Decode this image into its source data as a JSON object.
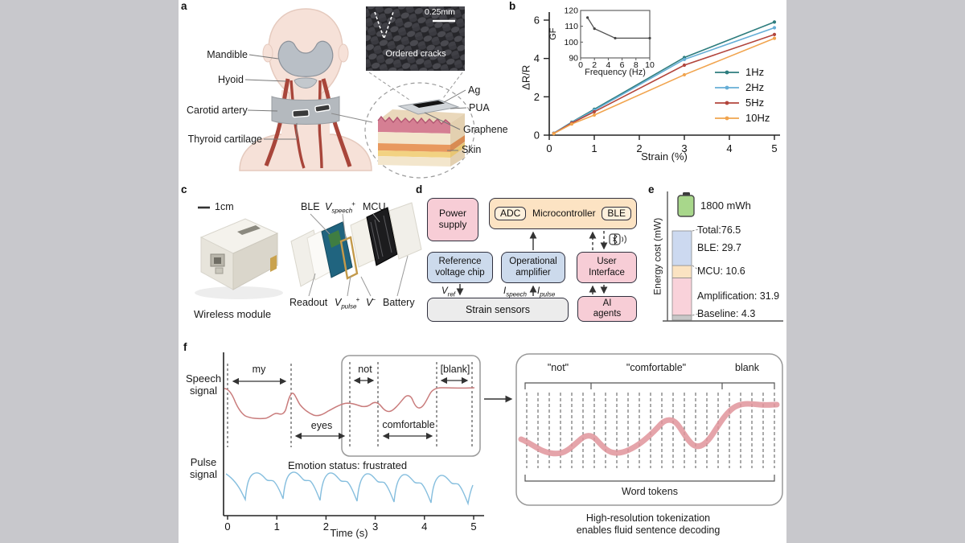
{
  "panels": {
    "a": "a",
    "b": "b",
    "c": "c",
    "d": "d",
    "e": "e",
    "f": "f"
  },
  "chart_data": [
    {
      "id": "strain-response",
      "type": "line",
      "xlabel": "Strain (%)",
      "ylabel": "ΔR/R",
      "xlim": [
        0,
        5
      ],
      "ylim": [
        0,
        6
      ],
      "xticks": [
        0,
        1,
        2,
        3,
        4,
        5
      ],
      "yticks": [
        0,
        2,
        4,
        6
      ],
      "x": [
        0.1,
        0.5,
        1,
        3,
        5
      ],
      "legend_position": "right",
      "series": [
        {
          "name": "1Hz",
          "color": "#2e7d7e",
          "values": [
            0.1,
            0.68,
            1.35,
            4.05,
            5.9
          ]
        },
        {
          "name": "2Hz",
          "color": "#66aed6",
          "values": [
            0.1,
            0.66,
            1.3,
            3.95,
            5.6
          ]
        },
        {
          "name": "5Hz",
          "color": "#b2453c",
          "values": [
            0.09,
            0.63,
            1.22,
            3.65,
            5.25
          ]
        },
        {
          "name": "10Hz",
          "color": "#f1a44e",
          "values": [
            0.08,
            0.58,
            1.05,
            3.15,
            5.05
          ]
        }
      ]
    },
    {
      "id": "gauge-factor-inset",
      "type": "line",
      "xlabel": "Frequency (Hz)",
      "ylabel": "GF",
      "xlim": [
        0,
        10
      ],
      "ylim": [
        90,
        120
      ],
      "xticks": [
        0,
        2,
        4,
        6,
        8,
        10
      ],
      "yticks": [
        90,
        100,
        110,
        120
      ],
      "x": [
        1,
        2,
        5,
        10
      ],
      "series": [
        {
          "name": "GF",
          "color": "#555555",
          "values": [
            115.5,
            108.5,
            102.5,
            102.5
          ]
        }
      ]
    },
    {
      "id": "energy-cost",
      "type": "bar",
      "ylabel": "Energy cost (mW)",
      "battery_label": "1800 mWh",
      "total": 76.5,
      "total_label": "Total:76.5",
      "segments": [
        {
          "name": "Baseline",
          "value": 4.3,
          "label": "Baseline: 4.3",
          "color": "#c8c8c8"
        },
        {
          "name": "Amplification",
          "value": 31.9,
          "label": "Amplification: 31.9",
          "color": "#f9d2da"
        },
        {
          "name": "MCU",
          "value": 10.6,
          "label": "MCU: 10.6",
          "color": "#fbe3c2"
        },
        {
          "name": "BLE",
          "value": 29.7,
          "label": "BLE: 29.7",
          "color": "#ccd9f0"
        }
      ]
    }
  ],
  "panel_a": {
    "mandible": "Mandible",
    "hyoid": "Hyoid",
    "carotid": "Carotid artery",
    "thyroid": "Thyroid cartilage",
    "sem_scale": "0.25mm",
    "sem_caption": "Ordered cracks",
    "ag": "Ag",
    "pua": "PUA",
    "graphene": "Graphene",
    "skin": "Skin"
  },
  "panel_c": {
    "scale": "1cm",
    "caption": "Wireless module",
    "ble": "BLE",
    "mcu": "MCU",
    "readout": "Readout",
    "battery": "Battery",
    "v_speech": {
      "base": "V",
      "sub": "speech",
      "sup": "+"
    },
    "v_pulse": {
      "base": "V",
      "sub": "pulse",
      "sup": "+"
    },
    "v_minus": {
      "base": "V",
      "sup": "−"
    }
  },
  "panel_d": {
    "power_supply": "Power supply",
    "adc": "ADC",
    "microcontroller": "Microcontroller",
    "ble": "BLE",
    "reference": "Reference voltage chip",
    "opamp": "Operational amplifier",
    "user_interface": "User Interface",
    "strain_sensors": "Strain sensors",
    "ai_agents": "AI agents",
    "v_ref": {
      "base": "V",
      "sub": "ref"
    },
    "i_speech": {
      "base": "I",
      "sub": "speech"
    },
    "i_pulse": {
      "base": "I",
      "sub": "pulse"
    }
  },
  "panel_f": {
    "speech_label": "Speech signal",
    "pulse_label": "Pulse signal",
    "emotion": "Emotion status: frustrated",
    "xlabel": "Time (s)",
    "xticks": [
      0,
      1,
      2,
      3,
      4,
      5
    ],
    "words": [
      {
        "text": "my"
      },
      {
        "text": "eyes"
      },
      {
        "text": "not"
      },
      {
        "text": "comfortable"
      },
      {
        "text": "[blank]"
      }
    ],
    "right": {
      "labels": [
        "\"not\"",
        "\"comfortable\"",
        "blank"
      ],
      "bracket_caption": "Word tokens",
      "caption1": "High-resolution tokenization",
      "caption2": "enables fluid sentence decoding"
    }
  }
}
